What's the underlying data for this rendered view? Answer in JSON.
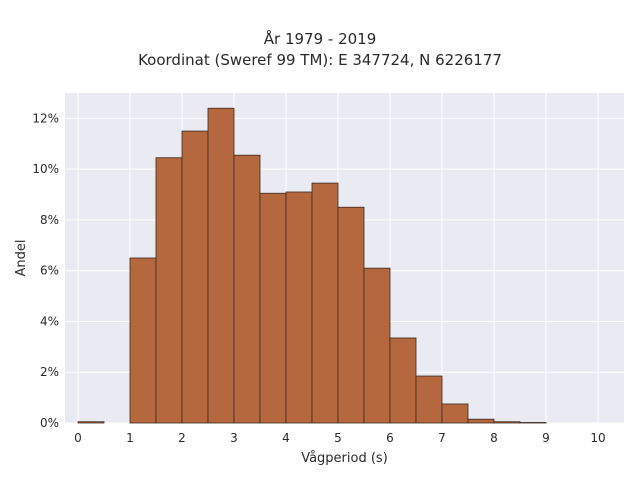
{
  "chart_data": {
    "type": "bar",
    "title": "År 1979 - 2019",
    "subtitle": "Koordinat (Sweref 99 TM): E 347724, N 6226177",
    "xlabel": "Vågperiod (s)",
    "ylabel": "Andel",
    "xlim": [
      -0.25,
      10.5
    ],
    "ylim": [
      0,
      13
    ],
    "x_ticks": [
      0,
      1,
      2,
      3,
      4,
      5,
      6,
      7,
      8,
      9,
      10
    ],
    "y_ticks": [
      0,
      2,
      4,
      6,
      8,
      10,
      12
    ],
    "y_tick_labels": [
      "0%",
      "2%",
      "4%",
      "6%",
      "8%",
      "10%",
      "12%"
    ],
    "bin_width": 0.5,
    "bin_starts": [
      0,
      0.5,
      1,
      1.5,
      2,
      2.5,
      3,
      3.5,
      4,
      4.5,
      5,
      5.5,
      6,
      6.5,
      7,
      7.5,
      8,
      8.5,
      9,
      9.5
    ],
    "values": [
      0.05,
      0,
      6.5,
      10.45,
      11.5,
      12.4,
      10.55,
      9.05,
      9.1,
      9.45,
      8.5,
      6.1,
      3.35,
      1.85,
      0.75,
      0.15,
      0.05,
      0.02,
      0,
      0
    ],
    "grid": true,
    "colors": {
      "bar_fill": "#b5683e",
      "bar_edge": "#3a2a20",
      "plot_bg": "#eaeaf2",
      "grid": "#ffffff"
    }
  }
}
